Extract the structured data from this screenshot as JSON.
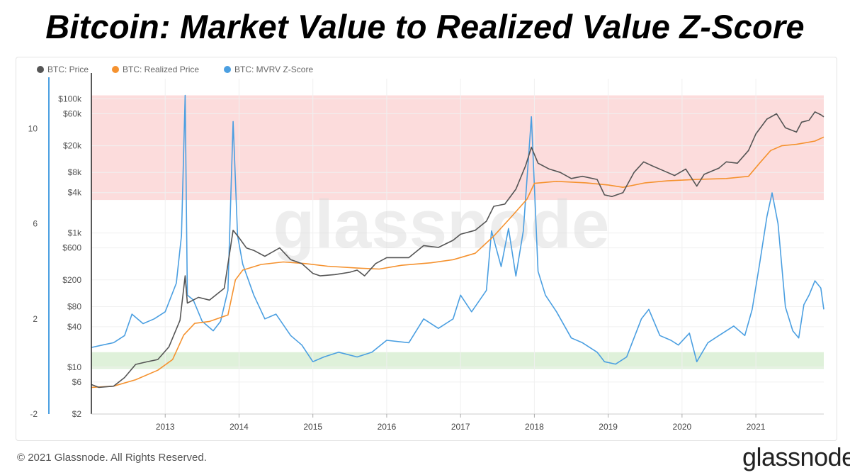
{
  "title": "Bitcoin: Market Value to Realized Value Z-Score",
  "footer": "© 2021 Glassnode. All Rights Reserved.",
  "brand": "glassnode",
  "colors": {
    "price": "#555555",
    "realized": "#f5922f",
    "zscore": "#4b9fe1",
    "red_band": "#fbd6d6",
    "green_band": "#dcefd6",
    "axis_line": "#4b9fe1"
  },
  "chart_data": {
    "type": "line",
    "watermark": "glassnode",
    "legend": [
      {
        "name": "BTC: Price",
        "color": "#555555"
      },
      {
        "name": "BTC: Realized Price",
        "color": "#f5922f"
      },
      {
        "name": "BTC: MVRV Z-Score",
        "color": "#4b9fe1"
      }
    ],
    "x_ticks": [
      "2013",
      "2014",
      "2015",
      "2016",
      "2017",
      "2018",
      "2019",
      "2020",
      "2021"
    ],
    "x_range": [
      2012.0,
      2021.92
    ],
    "price_axis": {
      "scale": "log",
      "range": [
        2,
        200000
      ],
      "ticks": [
        "$100k",
        "$60k",
        "$20k",
        "$8k",
        "$4k",
        "$1k",
        "$600",
        "$200",
        "$80",
        "$40",
        "$10",
        "$6",
        "$2"
      ],
      "tick_values": [
        100000,
        60000,
        20000,
        8000,
        4000,
        1000,
        600,
        200,
        80,
        40,
        10,
        6,
        2
      ]
    },
    "zscore_axis": {
      "range": [
        -2,
        12.1
      ],
      "ticks": [
        "10",
        "6",
        "2",
        "-2"
      ],
      "tick_values": [
        10,
        6,
        2,
        -2
      ]
    },
    "bands": [
      {
        "name": "overvalued",
        "axis": "zscore",
        "from": 7.0,
        "to": 11.4
      },
      {
        "name": "undervalued",
        "axis": "zscore",
        "from": -0.1,
        "to": 0.6
      }
    ],
    "series": [
      {
        "name": "BTC: Price",
        "axis": "price",
        "points": [
          [
            2012.0,
            5.5
          ],
          [
            2012.1,
            5
          ],
          [
            2012.3,
            5.2
          ],
          [
            2012.45,
            7
          ],
          [
            2012.6,
            11
          ],
          [
            2012.75,
            12
          ],
          [
            2012.9,
            13
          ],
          [
            2013.05,
            20
          ],
          [
            2013.2,
            50
          ],
          [
            2013.27,
            230
          ],
          [
            2013.3,
            90
          ],
          [
            2013.45,
            110
          ],
          [
            2013.6,
            100
          ],
          [
            2013.8,
            150
          ],
          [
            2013.92,
            1100
          ],
          [
            2014.0,
            850
          ],
          [
            2014.1,
            600
          ],
          [
            2014.2,
            550
          ],
          [
            2014.35,
            450
          ],
          [
            2014.55,
            600
          ],
          [
            2014.7,
            400
          ],
          [
            2014.85,
            350
          ],
          [
            2015.0,
            250
          ],
          [
            2015.1,
            230
          ],
          [
            2015.3,
            240
          ],
          [
            2015.5,
            260
          ],
          [
            2015.6,
            280
          ],
          [
            2015.7,
            230
          ],
          [
            2015.85,
            350
          ],
          [
            2016.0,
            430
          ],
          [
            2016.3,
            430
          ],
          [
            2016.5,
            650
          ],
          [
            2016.7,
            610
          ],
          [
            2016.9,
            780
          ],
          [
            2017.0,
            960
          ],
          [
            2017.2,
            1100
          ],
          [
            2017.35,
            1500
          ],
          [
            2017.45,
            2500
          ],
          [
            2017.6,
            2700
          ],
          [
            2017.75,
            4500
          ],
          [
            2017.88,
            10000
          ],
          [
            2017.96,
            19000
          ],
          [
            2018.05,
            11000
          ],
          [
            2018.2,
            9000
          ],
          [
            2018.35,
            8000
          ],
          [
            2018.5,
            6500
          ],
          [
            2018.65,
            7000
          ],
          [
            2018.85,
            6300
          ],
          [
            2018.95,
            3700
          ],
          [
            2019.05,
            3500
          ],
          [
            2019.2,
            4000
          ],
          [
            2019.35,
            8000
          ],
          [
            2019.48,
            11500
          ],
          [
            2019.6,
            10000
          ],
          [
            2019.75,
            8500
          ],
          [
            2019.9,
            7200
          ],
          [
            2020.05,
            9000
          ],
          [
            2020.2,
            5000
          ],
          [
            2020.3,
            7500
          ],
          [
            2020.5,
            9300
          ],
          [
            2020.6,
            11500
          ],
          [
            2020.75,
            11000
          ],
          [
            2020.9,
            17000
          ],
          [
            2021.0,
            30000
          ],
          [
            2021.15,
            50000
          ],
          [
            2021.28,
            60000
          ],
          [
            2021.4,
            37000
          ],
          [
            2021.55,
            32000
          ],
          [
            2021.62,
            45000
          ],
          [
            2021.72,
            48000
          ],
          [
            2021.8,
            64000
          ],
          [
            2021.88,
            58000
          ],
          [
            2021.92,
            54000
          ]
        ]
      },
      {
        "name": "BTC: Realized Price",
        "axis": "price",
        "points": [
          [
            2012.0,
            5
          ],
          [
            2012.3,
            5.2
          ],
          [
            2012.6,
            6.5
          ],
          [
            2012.9,
            9
          ],
          [
            2013.1,
            13
          ],
          [
            2013.25,
            30
          ],
          [
            2013.4,
            45
          ],
          [
            2013.6,
            48
          ],
          [
            2013.85,
            60
          ],
          [
            2013.95,
            200
          ],
          [
            2014.05,
            280
          ],
          [
            2014.3,
            340
          ],
          [
            2014.6,
            370
          ],
          [
            2014.9,
            350
          ],
          [
            2015.2,
            320
          ],
          [
            2015.6,
            300
          ],
          [
            2015.9,
            290
          ],
          [
            2016.2,
            330
          ],
          [
            2016.6,
            360
          ],
          [
            2016.9,
            400
          ],
          [
            2017.2,
            500
          ],
          [
            2017.45,
            900
          ],
          [
            2017.7,
            1800
          ],
          [
            2017.9,
            3200
          ],
          [
            2018.0,
            5500
          ],
          [
            2018.3,
            5900
          ],
          [
            2018.7,
            5600
          ],
          [
            2019.0,
            5200
          ],
          [
            2019.2,
            4800
          ],
          [
            2019.5,
            5600
          ],
          [
            2019.8,
            6000
          ],
          [
            2020.2,
            6300
          ],
          [
            2020.6,
            6500
          ],
          [
            2020.9,
            7000
          ],
          [
            2021.05,
            11000
          ],
          [
            2021.2,
            17000
          ],
          [
            2021.35,
            20000
          ],
          [
            2021.55,
            21000
          ],
          [
            2021.8,
            23500
          ],
          [
            2021.92,
            27000
          ]
        ]
      },
      {
        "name": "BTC: MVRV Z-Score",
        "axis": "zscore",
        "points": [
          [
            2012.0,
            0.8
          ],
          [
            2012.15,
            0.9
          ],
          [
            2012.3,
            1.0
          ],
          [
            2012.45,
            1.3
          ],
          [
            2012.55,
            2.2
          ],
          [
            2012.7,
            1.8
          ],
          [
            2012.85,
            2.0
          ],
          [
            2013.0,
            2.3
          ],
          [
            2013.15,
            3.5
          ],
          [
            2013.22,
            5.5
          ],
          [
            2013.27,
            11.4
          ],
          [
            2013.3,
            3.0
          ],
          [
            2013.38,
            2.8
          ],
          [
            2013.5,
            1.9
          ],
          [
            2013.65,
            1.5
          ],
          [
            2013.75,
            1.9
          ],
          [
            2013.85,
            3.2
          ],
          [
            2013.92,
            10.3
          ],
          [
            2013.98,
            5.5
          ],
          [
            2014.05,
            4.3
          ],
          [
            2014.2,
            3.0
          ],
          [
            2014.35,
            2.0
          ],
          [
            2014.5,
            2.2
          ],
          [
            2014.7,
            1.3
          ],
          [
            2014.85,
            0.9
          ],
          [
            2015.0,
            0.2
          ],
          [
            2015.15,
            0.4
          ],
          [
            2015.35,
            0.6
          ],
          [
            2015.6,
            0.4
          ],
          [
            2015.8,
            0.6
          ],
          [
            2016.0,
            1.1
          ],
          [
            2016.3,
            1.0
          ],
          [
            2016.5,
            2.0
          ],
          [
            2016.7,
            1.6
          ],
          [
            2016.9,
            2.0
          ],
          [
            2017.0,
            3.0
          ],
          [
            2017.15,
            2.3
          ],
          [
            2017.35,
            3.2
          ],
          [
            2017.42,
            5.7
          ],
          [
            2017.55,
            4.2
          ],
          [
            2017.65,
            5.8
          ],
          [
            2017.75,
            3.8
          ],
          [
            2017.85,
            5.7
          ],
          [
            2017.96,
            10.5
          ],
          [
            2018.05,
            4.0
          ],
          [
            2018.15,
            3.0
          ],
          [
            2018.3,
            2.3
          ],
          [
            2018.5,
            1.2
          ],
          [
            2018.65,
            1.0
          ],
          [
            2018.85,
            0.6
          ],
          [
            2018.95,
            0.2
          ],
          [
            2019.1,
            0.1
          ],
          [
            2019.25,
            0.4
          ],
          [
            2019.45,
            2.0
          ],
          [
            2019.55,
            2.4
          ],
          [
            2019.7,
            1.3
          ],
          [
            2019.85,
            1.1
          ],
          [
            2019.95,
            0.9
          ],
          [
            2020.1,
            1.4
          ],
          [
            2020.2,
            0.2
          ],
          [
            2020.35,
            1.0
          ],
          [
            2020.55,
            1.4
          ],
          [
            2020.7,
            1.7
          ],
          [
            2020.85,
            1.3
          ],
          [
            2020.95,
            2.4
          ],
          [
            2021.05,
            4.3
          ],
          [
            2021.15,
            6.3
          ],
          [
            2021.22,
            7.3
          ],
          [
            2021.3,
            6.0
          ],
          [
            2021.4,
            2.5
          ],
          [
            2021.5,
            1.5
          ],
          [
            2021.58,
            1.2
          ],
          [
            2021.65,
            2.6
          ],
          [
            2021.72,
            3.0
          ],
          [
            2021.8,
            3.6
          ],
          [
            2021.88,
            3.3
          ],
          [
            2021.92,
            2.4
          ]
        ]
      }
    ]
  }
}
